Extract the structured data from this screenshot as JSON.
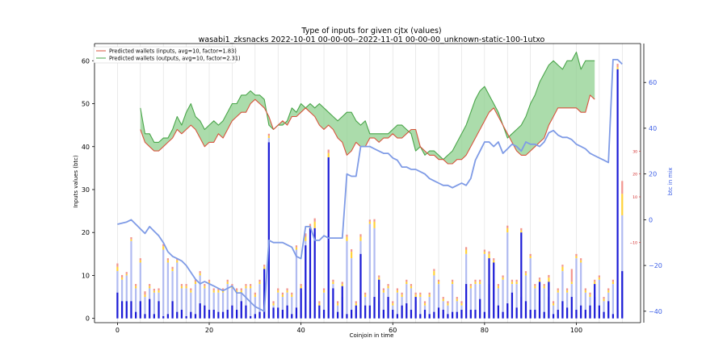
{
  "chart_data": {
    "type": "bar",
    "title": "Type of inputs for given cjtx (values)",
    "subtitle": "wasabi1_zksnacks 2022-10-01 00-00-00--2022-11-01 00-00-00_unknown-static-100-1utxo",
    "xlabel": "Coinjoin in time",
    "ylabel": "Inputs values (btc)",
    "y2label": "btc in mix",
    "xlim": [
      -5,
      114
    ],
    "ylim": [
      -1,
      64
    ],
    "y2lim": [
      -45,
      77
    ],
    "y3lim": [
      -45,
      77
    ],
    "xticks": [
      "0",
      "20",
      "40",
      "60",
      "80",
      "100"
    ],
    "yticks": [
      "0",
      "10",
      "20",
      "30",
      "40",
      "50",
      "60"
    ],
    "y2ticks": [
      "−40",
      "−20",
      "0",
      "20",
      "40",
      "60"
    ],
    "y3ticks": [
      "−10",
      "10",
      "20",
      "30"
    ],
    "y3tick_values": [
      -10,
      10,
      20,
      30
    ],
    "legend_position": "top-left",
    "colors": {
      "bar_main": "#1c1cd6",
      "bar_light": "#a9b4ef",
      "bar_yellow": "#ffd23a",
      "bar_red": "#f2958e",
      "inputs_line": "#d9543e",
      "outputs_line": "#4aa54a",
      "fill": "#8fd08f",
      "mix_line": "#7f9be6",
      "right_axis_1": "#d02020",
      "right_axis_2": "#3b5ee6",
      "grid": "#dcdcdc"
    },
    "series": [
      {
        "name": "Predicted wallets (inputs, avg=10, factor=1.83)",
        "type": "line",
        "x": [
          5,
          6,
          7,
          8,
          9,
          10,
          11,
          12,
          13,
          14,
          15,
          16,
          17,
          18,
          19,
          20,
          21,
          22,
          23,
          24,
          25,
          26,
          27,
          28,
          29,
          30,
          31,
          32,
          33,
          34,
          35,
          36,
          37,
          38,
          39,
          40,
          41,
          42,
          43,
          44,
          45,
          46,
          47,
          48,
          49,
          50,
          51,
          52,
          53,
          54,
          55,
          56,
          57,
          58,
          59,
          60,
          61,
          62,
          63,
          64,
          65,
          66,
          67,
          68,
          69,
          70,
          71,
          72,
          73,
          74,
          75,
          76,
          77,
          78,
          79,
          80,
          81,
          82,
          83,
          84,
          85,
          86,
          87,
          88,
          89,
          90,
          91,
          92,
          93,
          94,
          95,
          96,
          97,
          98,
          99,
          100,
          101,
          102,
          103,
          104
        ],
        "values": [
          44,
          41,
          40,
          39,
          39,
          40,
          41,
          42,
          44,
          43,
          44,
          45,
          44,
          42,
          40,
          41,
          41,
          43,
          42,
          44,
          46,
          47,
          48,
          48,
          50,
          51,
          50,
          49,
          47,
          44,
          45,
          46,
          45,
          47,
          47,
          48,
          49,
          48,
          47,
          45,
          44,
          45,
          44,
          42,
          41,
          38,
          39,
          41,
          40,
          40,
          42,
          42,
          41,
          42,
          42,
          43,
          42,
          42,
          43,
          44,
          44,
          40,
          39,
          38,
          38,
          37,
          37,
          36,
          36,
          37,
          37,
          38,
          40,
          42,
          44,
          46,
          48,
          49,
          47,
          45,
          43,
          41,
          39,
          38,
          38,
          39,
          40,
          41,
          42,
          45,
          47,
          49,
          49,
          49,
          49,
          49,
          48,
          48,
          52,
          51
        ]
      },
      {
        "name": "Predicted wallets (outputs, avg=10, factor=2.31)",
        "type": "line",
        "x": [
          5,
          6,
          7,
          8,
          9,
          10,
          11,
          12,
          13,
          14,
          15,
          16,
          17,
          18,
          19,
          20,
          21,
          22,
          23,
          24,
          25,
          26,
          27,
          28,
          29,
          30,
          31,
          32,
          33,
          34,
          35,
          36,
          37,
          38,
          39,
          40,
          41,
          42,
          43,
          44,
          45,
          46,
          47,
          48,
          49,
          50,
          51,
          52,
          53,
          54,
          55,
          56,
          57,
          58,
          59,
          60,
          61,
          62,
          63,
          64,
          65,
          66,
          67,
          68,
          69,
          70,
          71,
          72,
          73,
          74,
          75,
          76,
          77,
          78,
          79,
          80,
          81,
          82,
          83,
          84,
          85,
          86,
          87,
          88,
          89,
          90,
          91,
          92,
          93,
          94,
          95,
          96,
          97,
          98,
          99,
          100,
          101,
          102,
          103,
          104
        ],
        "values": [
          49,
          43,
          43,
          41,
          41,
          42,
          42,
          44,
          47,
          45,
          48,
          50,
          47,
          46,
          44,
          45,
          46,
          45,
          46,
          48,
          50,
          50,
          52,
          52,
          53,
          52,
          52,
          51,
          45,
          44,
          45,
          45,
          46,
          49,
          48,
          50,
          49,
          50,
          49,
          50,
          49,
          48,
          47,
          46,
          47,
          48,
          48,
          46,
          45,
          46,
          43,
          43,
          43,
          43,
          43,
          44,
          45,
          45,
          44,
          43,
          39,
          40,
          38,
          39,
          39,
          38,
          37,
          38,
          39,
          41,
          43,
          45,
          48,
          51,
          53,
          54,
          52,
          50,
          48,
          45,
          42,
          43,
          44,
          45,
          47,
          50,
          52,
          55,
          57,
          59,
          60,
          59,
          58,
          60,
          60,
          62,
          58,
          60,
          60,
          60
        ]
      },
      {
        "name": "btc in mix",
        "type": "line",
        "axis": "y2",
        "x": [
          0,
          1,
          2,
          3,
          4,
          5,
          6,
          7,
          8,
          9,
          10,
          11,
          12,
          13,
          14,
          15,
          16,
          17,
          18,
          19,
          20,
          21,
          22,
          23,
          24,
          25,
          26,
          27,
          28,
          29,
          30,
          31,
          32,
          33,
          34,
          35,
          36,
          37,
          38,
          39,
          40,
          41,
          42,
          43,
          44,
          45,
          46,
          47,
          48,
          49,
          50,
          51,
          52,
          53,
          54,
          55,
          56,
          57,
          58,
          59,
          60,
          61,
          62,
          63,
          64,
          65,
          66,
          67,
          68,
          69,
          70,
          71,
          72,
          73,
          74,
          75,
          76,
          77,
          78,
          79,
          80,
          81,
          82,
          83,
          84,
          85,
          86,
          87,
          88,
          89,
          90,
          91,
          92,
          93,
          94,
          95,
          96,
          97,
          98,
          99,
          100,
          101,
          102,
          103,
          104,
          105,
          106,
          107,
          108,
          109,
          110
        ],
        "values": [
          -2,
          -1.5,
          -1,
          0,
          -2,
          -4,
          -6,
          -3,
          -5,
          -7,
          -10,
          -14,
          -16,
          -17,
          -18,
          -20,
          -23,
          -26,
          -28,
          -27,
          -28,
          -29,
          -30,
          -31,
          -30,
          -29,
          -32,
          -32,
          -34,
          -36,
          -38,
          -39,
          -40,
          -9,
          -10,
          -10,
          -10,
          -11,
          -12,
          -16,
          -17,
          -3,
          -3,
          -9,
          -9,
          -7,
          -8,
          -8,
          -8,
          -8,
          20,
          19,
          19,
          32,
          32,
          32,
          31,
          30,
          29,
          29,
          27,
          26,
          23,
          23,
          22,
          22,
          21,
          20,
          18,
          17,
          16,
          15,
          15,
          14,
          15,
          16,
          15,
          18,
          26,
          30,
          34,
          34,
          32,
          34,
          29,
          31,
          33,
          32,
          30,
          34,
          33,
          33,
          32,
          34,
          38,
          39,
          37,
          36,
          36,
          35,
          33,
          32,
          31,
          29,
          28,
          27,
          26,
          25,
          70,
          70,
          68
        ]
      }
    ],
    "bars": {
      "x": [
        0,
        1,
        2,
        3,
        4,
        5,
        6,
        7,
        8,
        9,
        10,
        11,
        12,
        13,
        14,
        15,
        16,
        17,
        18,
        19,
        20,
        21,
        22,
        23,
        24,
        25,
        26,
        27,
        28,
        29,
        30,
        31,
        32,
        33,
        34,
        35,
        36,
        37,
        38,
        39,
        40,
        41,
        42,
        43,
        44,
        45,
        46,
        47,
        48,
        49,
        50,
        51,
        52,
        53,
        54,
        55,
        56,
        57,
        58,
        59,
        60,
        61,
        62,
        63,
        64,
        65,
        66,
        67,
        68,
        69,
        70,
        71,
        72,
        73,
        74,
        75,
        76,
        77,
        78,
        79,
        80,
        81,
        82,
        83,
        84,
        85,
        86,
        87,
        88,
        89,
        90,
        91,
        92,
        93,
        94,
        95,
        96,
        97,
        98,
        99,
        100,
        101,
        102,
        103,
        104,
        105,
        106,
        107,
        108,
        109,
        110
      ],
      "main": [
        6,
        4,
        4,
        4,
        1.5,
        4,
        1,
        4.5,
        1,
        4,
        0.5,
        1,
        4,
        1.5,
        2,
        0.5,
        1.5,
        1,
        3.5,
        3,
        2,
        2,
        1.5,
        1.5,
        2,
        3,
        2,
        4,
        3,
        0.5,
        1,
        1.5,
        11.5,
        41,
        2.5,
        2.5,
        2,
        3,
        1,
        2.5,
        7,
        17,
        21,
        21,
        3,
        2,
        37.5,
        7,
        1.5,
        7.5,
        1,
        2,
        3,
        15,
        3,
        3,
        5,
        9,
        2,
        5,
        2,
        1,
        3,
        3.5,
        2,
        5,
        1,
        2,
        1,
        1.5,
        2.5,
        2,
        1,
        1.5,
        1.5,
        2,
        8,
        2,
        2,
        4.5,
        1.5,
        14,
        13,
        3,
        1.5,
        3.5,
        6,
        2.5,
        20,
        4,
        2,
        2,
        8.5,
        1.5,
        8.5,
        1,
        2,
        4,
        2.5,
        5,
        2,
        3,
        2,
        3,
        8,
        3,
        1.5,
        4,
        1,
        58,
        11
      ],
      "light": [
        11,
        9,
        10,
        18,
        7,
        13,
        5,
        7,
        6,
        6,
        16,
        13,
        11,
        13,
        7,
        7,
        6,
        8,
        10,
        7,
        8,
        6,
        6,
        6,
        8,
        7,
        6,
        6,
        7,
        7,
        5,
        8,
        7,
        42,
        3,
        6,
        5,
        6,
        5,
        16,
        6,
        18,
        4,
        20,
        3,
        6,
        18,
        8,
        3,
        5,
        18,
        14,
        2,
        18,
        5,
        22,
        21,
        4,
        6,
        7,
        3,
        6,
        5,
        8,
        7,
        4,
        5,
        3,
        5,
        10,
        8,
        4,
        3,
        8,
        4,
        3,
        15,
        7,
        8,
        8,
        15,
        8,
        9,
        7,
        9,
        20,
        8,
        8,
        5,
        10,
        14,
        7,
        4,
        7,
        5,
        3,
        6,
        11,
        6,
        8,
        14,
        13,
        6,
        5,
        5,
        9,
        4,
        6,
        8,
        2,
        24
      ],
      "yellow": [
        1,
        0.5,
        0.3,
        0.4,
        0.5,
        0.5,
        0.5,
        0.5,
        0.4,
        0.5,
        0.8,
        0.5,
        0.5,
        0.5,
        0.5,
        0.5,
        0.5,
        0.5,
        0.5,
        0.5,
        0.5,
        0.5,
        0.5,
        0.5,
        0.5,
        0.5,
        0.5,
        0.5,
        0.5,
        0.5,
        0.5,
        0.5,
        0.5,
        0.5,
        0.5,
        0.5,
        0.5,
        0.5,
        0.5,
        0.5,
        0.5,
        1,
        0.5,
        1.5,
        0.5,
        0.5,
        1,
        0.5,
        0.5,
        0.5,
        1,
        1.5,
        0.5,
        1,
        0.5,
        0.5,
        1.5,
        0.5,
        0.5,
        0.5,
        0.5,
        0.5,
        0.5,
        0.5,
        0.5,
        0.5,
        0.5,
        0.5,
        0.5,
        1,
        0.5,
        0.5,
        0.5,
        0.5,
        0.5,
        0.5,
        1,
        0.5,
        0.5,
        0.5,
        0.5,
        1,
        0.5,
        0.5,
        0.5,
        1,
        0.5,
        0.5,
        0.5,
        0.5,
        0.5,
        0.5,
        0.5,
        0.5,
        1,
        0.5,
        0.5,
        1,
        0.5,
        0.5,
        0.5,
        0.5,
        0.5,
        0.5,
        0.5,
        0.5,
        0.5,
        0.5,
        0.5,
        0.5,
        5
      ],
      "red": [
        0.8,
        0.6,
        0.5,
        0.5,
        0.5,
        0.5,
        0.8,
        0.5,
        0.5,
        0.5,
        0.5,
        0.5,
        0.5,
        0.5,
        0.5,
        0.5,
        0.5,
        0.5,
        0.5,
        0.5,
        0.5,
        0.5,
        0.5,
        0.5,
        0.5,
        0.5,
        0.5,
        0.5,
        0.5,
        0.5,
        0.5,
        0.5,
        0.5,
        0.5,
        0.5,
        0.5,
        0.5,
        0.5,
        0.5,
        0.5,
        0.5,
        0.8,
        0.5,
        0.8,
        0.5,
        0.5,
        0.8,
        0.5,
        0.5,
        0.5,
        0.5,
        0.6,
        0.5,
        0.6,
        0.5,
        0.5,
        0.6,
        0.5,
        0.5,
        0.5,
        0.5,
        0.5,
        0.5,
        0.5,
        0.5,
        0.5,
        0.5,
        0.5,
        0.5,
        0.5,
        0.5,
        0.5,
        0.5,
        0.5,
        0.5,
        0.5,
        0.6,
        0.5,
        0.5,
        0.5,
        0.5,
        0.6,
        0.5,
        0.5,
        0.5,
        0.6,
        0.5,
        0.5,
        0.5,
        0.5,
        0.5,
        0.5,
        0.5,
        0.5,
        0.6,
        0.5,
        0.5,
        0.5,
        0.5,
        3,
        0.5,
        0.5,
        0.5,
        0.5,
        0.5,
        0.5,
        0.5,
        0.5,
        0.5,
        0.8,
        3
      ]
    }
  }
}
